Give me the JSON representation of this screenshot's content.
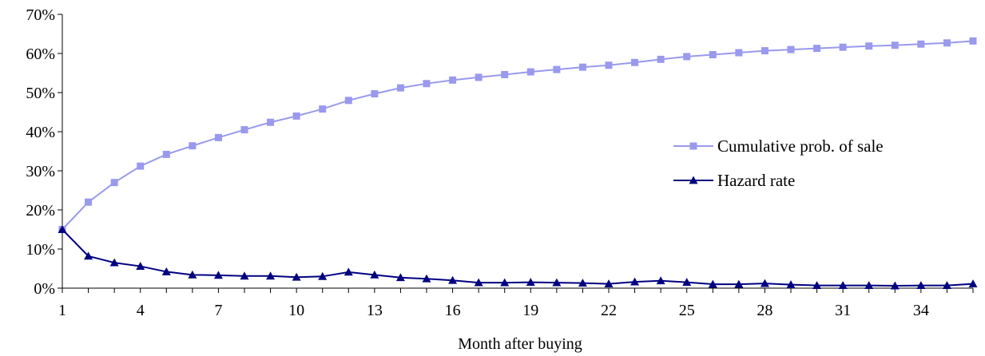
{
  "chart_data": {
    "type": "line",
    "title": "",
    "xlabel": "Month after buying",
    "ylabel": "",
    "x": [
      1,
      2,
      3,
      4,
      5,
      6,
      7,
      8,
      9,
      10,
      11,
      12,
      13,
      14,
      15,
      16,
      17,
      18,
      19,
      20,
      21,
      22,
      23,
      24,
      25,
      26,
      27,
      28,
      29,
      30,
      31,
      32,
      33,
      34,
      35,
      36
    ],
    "xticks": [
      1,
      4,
      7,
      10,
      13,
      16,
      19,
      22,
      25,
      28,
      31,
      34
    ],
    "xtick_labels": [
      "1",
      "4",
      "7",
      "10",
      "13",
      "16",
      "19",
      "22",
      "25",
      "28",
      "31",
      "34"
    ],
    "xlim": [
      1,
      36
    ],
    "ylim": [
      0,
      70
    ],
    "yticks": [
      0,
      10,
      20,
      30,
      40,
      50,
      60,
      70
    ],
    "ytick_labels": [
      "0%",
      "10%",
      "20%",
      "30%",
      "40%",
      "50%",
      "60%",
      "70%"
    ],
    "grid": false,
    "legend_position": "right",
    "series": [
      {
        "name": "Cumulative prob. of sale",
        "marker": "square",
        "color": "#9999ee",
        "values": [
          15.0,
          22.0,
          27.0,
          31.2,
          34.2,
          36.4,
          38.5,
          40.5,
          42.4,
          44.0,
          45.8,
          48.0,
          49.7,
          51.2,
          52.3,
          53.2,
          53.9,
          54.6,
          55.3,
          55.9,
          56.5,
          57.0,
          57.7,
          58.5,
          59.2,
          59.7,
          60.2,
          60.7,
          61.0,
          61.3,
          61.6,
          61.9,
          62.1,
          62.4,
          62.7,
          63.2
        ]
      },
      {
        "name": "Hazard rate",
        "marker": "triangle",
        "color": "#000080",
        "values": [
          15.0,
          8.2,
          6.5,
          5.6,
          4.2,
          3.4,
          3.3,
          3.1,
          3.1,
          2.8,
          3.0,
          4.1,
          3.4,
          2.7,
          2.4,
          2.0,
          1.4,
          1.4,
          1.5,
          1.4,
          1.3,
          1.1,
          1.6,
          1.9,
          1.5,
          1.0,
          1.0,
          1.2,
          0.9,
          0.7,
          0.7,
          0.7,
          0.6,
          0.7,
          0.7,
          1.1
        ]
      }
    ]
  }
}
